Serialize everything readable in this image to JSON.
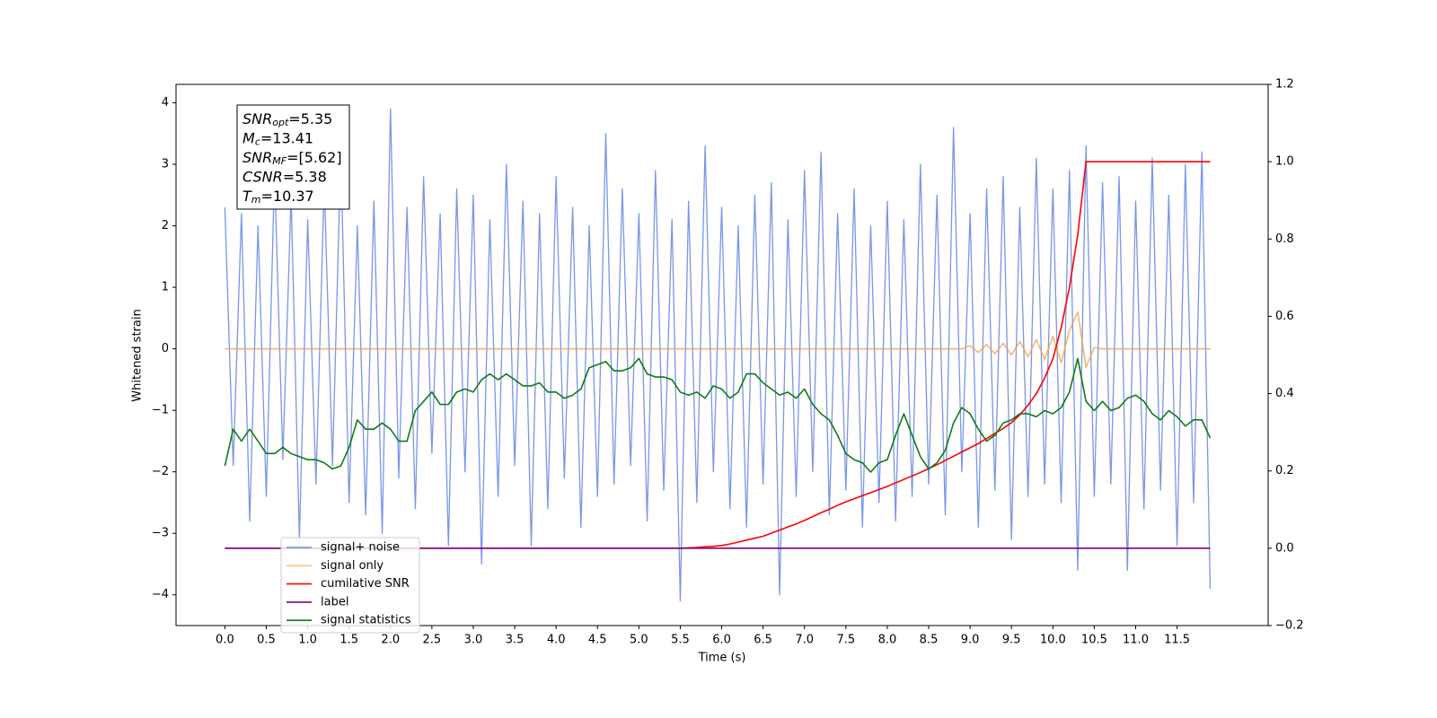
{
  "chart_data": {
    "type": "line",
    "xlabel": "Time (s)",
    "ylabel": "Whitened strain",
    "xlim": [
      -0.59,
      12.6
    ],
    "ylim": [
      -4.5,
      4.3
    ],
    "y2lim": [
      -0.2,
      1.2
    ],
    "xticks": [
      {
        "value": 0,
        "label": "0.0"
      },
      0.5,
      {
        "value": 1,
        "label": "1.0"
      },
      1.5,
      {
        "value": 2,
        "label": "2.0"
      },
      2.5,
      {
        "value": 3,
        "label": "3.0"
      },
      3.5,
      {
        "value": 4,
        "label": "4.0"
      },
      4.5,
      {
        "value": 5,
        "label": "5.0"
      },
      5.5,
      {
        "value": 6,
        "label": "6.0"
      },
      6.5,
      {
        "value": 7,
        "label": "7.0"
      },
      7.5,
      {
        "value": 8,
        "label": "8.0"
      },
      8.5,
      {
        "value": 9,
        "label": "9.0"
      },
      9.5,
      {
        "value": 10,
        "label": "10.0"
      },
      10.5,
      {
        "value": 11,
        "label": "11.0"
      },
      11.5
    ],
    "yticks": [
      {
        "value": -4,
        "label": "−4"
      },
      {
        "value": -3,
        "label": "−3"
      },
      {
        "value": -2,
        "label": "−2"
      },
      {
        "value": -1,
        "label": "−1"
      },
      0,
      1,
      2,
      3,
      4
    ],
    "y2ticks": [
      {
        "value": -0.2,
        "label": "−0.2"
      },
      {
        "value": 0,
        "label": "0.0"
      },
      0.2,
      0.4,
      0.6,
      0.8,
      {
        "value": 1,
        "label": "1.0"
      },
      1.2
    ],
    "annotations": [
      {
        "main": "SNR",
        "sub": "opt",
        "text": "=5.35"
      },
      {
        "main": "M",
        "sub": "c",
        "text": "=13.41"
      },
      {
        "main": "SNR",
        "sub": "MF",
        "text": "=[5.62]"
      },
      {
        "main": "CSNR",
        "sub": null,
        "text": "=5.38"
      },
      {
        "main": "T",
        "sub": "m",
        "text": "=10.37"
      }
    ],
    "x": [
      0,
      0.1,
      0.2,
      0.3,
      0.4,
      0.5,
      0.6,
      0.7,
      0.8,
      0.9,
      1,
      1.1,
      1.2,
      1.3,
      1.4,
      1.5,
      1.6,
      1.7,
      1.8,
      1.9,
      2,
      2.1,
      2.2,
      2.3,
      2.4,
      2.5,
      2.6,
      2.7,
      2.8,
      2.9,
      3,
      3.1,
      3.2,
      3.3,
      3.4,
      3.5,
      3.6,
      3.7,
      3.8,
      3.9,
      4,
      4.1,
      4.2,
      4.3,
      4.4,
      4.5,
      4.6,
      4.7,
      4.8,
      4.9,
      5,
      5.1,
      5.2,
      5.3,
      5.4,
      5.5,
      5.6,
      5.7,
      5.8,
      5.9,
      6,
      6.1,
      6.2,
      6.3,
      6.4,
      6.5,
      6.6,
      6.7,
      6.8,
      6.9,
      7,
      7.1,
      7.2,
      7.3,
      7.4,
      7.5,
      7.6,
      7.7,
      7.8,
      7.9,
      8,
      8.1,
      8.2,
      8.3,
      8.4,
      8.5,
      8.6,
      8.7,
      8.8,
      8.9,
      9,
      9.1,
      9.2,
      9.3,
      9.4,
      9.5,
      9.6,
      9.7,
      9.8,
      9.9,
      10,
      10.1,
      10.2,
      10.3,
      10.4,
      10.5,
      10.6,
      10.7,
      10.8,
      10.9,
      11,
      11.1,
      11.2,
      11.3,
      11.4,
      11.5,
      11.6,
      11.7,
      11.8,
      11.9
    ],
    "series": [
      {
        "name": "signal+ noise",
        "color": "#6a8be6",
        "axis": "y",
        "values": [
          2.3,
          -1.9,
          2.2,
          -2.8,
          2.0,
          -2.4,
          2.9,
          -1.8,
          2.5,
          -3.1,
          2.1,
          -2.2,
          2.7,
          -1.9,
          3.2,
          -2.5,
          2.0,
          -2.7,
          2.4,
          -3.0,
          3.9,
          -2.1,
          2.3,
          -2.6,
          2.8,
          -1.7,
          2.2,
          -3.2,
          2.6,
          -2.0,
          2.5,
          -3.5,
          2.1,
          -2.4,
          3.0,
          -1.9,
          2.4,
          -3.2,
          2.2,
          -2.6,
          2.8,
          -2.1,
          2.3,
          -2.9,
          2.0,
          -2.4,
          3.5,
          -2.2,
          2.6,
          -1.9,
          2.2,
          -2.8,
          2.9,
          -2.3,
          2.1,
          -4.1,
          2.4,
          -2.5,
          3.3,
          -2.0,
          2.3,
          -2.6,
          2.0,
          -2.9,
          2.5,
          -2.2,
          2.7,
          -4.0,
          2.1,
          -2.4,
          2.9,
          -2.0,
          3.2,
          -2.7,
          2.2,
          -2.3,
          2.6,
          -2.9,
          2.0,
          -2.5,
          2.4,
          -2.8,
          2.1,
          -2.4,
          3.0,
          -2.2,
          2.5,
          -2.7,
          3.6,
          -2.0,
          2.2,
          -2.9,
          2.6,
          -2.3,
          2.8,
          -3.1,
          2.3,
          -2.4,
          3.1,
          -2.2,
          2.6,
          -2.5,
          2.9,
          -3.6,
          3.3,
          -2.4,
          2.7,
          -2.2,
          2.8,
          -3.6,
          2.4,
          -2.6,
          3.1,
          -2.3,
          2.5,
          -3.2,
          3.0,
          -2.5,
          3.2,
          -3.9
        ]
      },
      {
        "name": "signal only",
        "color": "#f0a040",
        "axis": "y",
        "values": [
          0,
          0,
          0,
          0,
          0,
          0,
          0,
          0,
          0,
          0,
          0,
          0,
          0,
          0,
          0,
          0,
          0,
          0,
          0,
          0,
          0,
          0,
          0,
          0,
          0,
          0,
          0,
          0,
          0,
          0,
          0,
          0,
          0,
          0,
          0,
          0,
          0,
          0,
          0,
          0,
          0,
          0,
          0,
          0,
          0,
          0,
          0,
          0,
          0,
          0,
          0,
          0,
          0,
          0,
          0,
          0,
          0,
          0,
          0,
          0,
          0,
          0,
          0,
          0,
          0,
          0,
          0,
          0,
          0,
          0,
          0,
          0,
          0,
          0,
          0,
          0,
          0,
          0,
          0,
          0,
          0,
          0,
          0,
          0,
          0,
          0,
          0,
          0,
          0,
          0,
          0.05,
          -0.06,
          0.07,
          -0.08,
          0.09,
          -0.1,
          0.12,
          -0.13,
          0.15,
          -0.17,
          0.2,
          -0.23,
          0.3,
          0.6,
          -0.3,
          0.02,
          0,
          0,
          0,
          0,
          0,
          0,
          0,
          0,
          0,
          0,
          0,
          0,
          0,
          0
        ]
      },
      {
        "name": "cumilative SNR",
        "color": "#ff0000",
        "axis": "y2",
        "values": [
          0,
          0,
          0,
          0,
          0,
          0,
          0,
          0,
          0,
          0,
          0,
          0,
          0,
          0,
          0,
          0,
          0,
          0,
          0,
          0,
          0,
          0,
          0,
          0,
          0,
          0,
          0,
          0,
          0,
          0,
          0,
          0,
          0,
          0,
          0,
          0,
          0,
          0,
          0,
          0,
          0,
          0,
          0,
          0,
          0,
          0,
          0,
          0,
          0,
          0,
          0,
          0,
          0,
          0,
          0,
          0,
          0.001,
          0.002,
          0.004,
          0.005,
          0.007,
          0.011,
          0.016,
          0.021,
          0.026,
          0.031,
          0.039,
          0.047,
          0.055,
          0.063,
          0.072,
          0.082,
          0.092,
          0.101,
          0.111,
          0.12,
          0.128,
          0.136,
          0.144,
          0.152,
          0.16,
          0.169,
          0.178,
          0.187,
          0.196,
          0.206,
          0.216,
          0.227,
          0.238,
          0.249,
          0.26,
          0.271,
          0.284,
          0.297,
          0.31,
          0.325,
          0.345,
          0.37,
          0.4,
          0.44,
          0.49,
          0.57,
          0.675,
          0.81,
          1.0,
          1.0,
          1.0,
          1.0,
          1.0,
          1.0,
          1.0,
          1.0,
          1.0,
          1.0,
          1.0,
          1.0,
          1.0,
          1.0,
          1.0,
          1.0
        ]
      },
      {
        "name": "label",
        "color": "#800080",
        "axis": "y2",
        "values": [
          0,
          0,
          0,
          0,
          0,
          0,
          0,
          0,
          0,
          0,
          0,
          0,
          0,
          0,
          0,
          0,
          0,
          0,
          0,
          0,
          0,
          0,
          0,
          0,
          0,
          0,
          0,
          0,
          0,
          0,
          0,
          0,
          0,
          0,
          0,
          0,
          0,
          0,
          0,
          0,
          0,
          0,
          0,
          0,
          0,
          0,
          0,
          0,
          0,
          0,
          0,
          0,
          0,
          0,
          0,
          0,
          0,
          0,
          0,
          0,
          0,
          0,
          0,
          0,
          0,
          0,
          0,
          0,
          0,
          0,
          0,
          0,
          0,
          0,
          0,
          0,
          0,
          0,
          0,
          0,
          0,
          0,
          0,
          0,
          0,
          0,
          0,
          0,
          0,
          0,
          0,
          0,
          0,
          0,
          0,
          0,
          0,
          0,
          0,
          0,
          0,
          0,
          0,
          0,
          0,
          0,
          0,
          0,
          0,
          0,
          0,
          0,
          0,
          0,
          0,
          0,
          0,
          0,
          0,
          0
        ]
      },
      {
        "name": "signal statistics",
        "color": "#137a13",
        "axis": "y2",
        "values": [
          0.213,
          0.308,
          0.277,
          0.308,
          0.277,
          0.245,
          0.245,
          0.261,
          0.245,
          0.237,
          0.229,
          0.229,
          0.221,
          0.205,
          0.213,
          0.261,
          0.332,
          0.308,
          0.308,
          0.324,
          0.308,
          0.277,
          0.277,
          0.356,
          0.38,
          0.404,
          0.372,
          0.372,
          0.404,
          0.412,
          0.404,
          0.436,
          0.451,
          0.436,
          0.451,
          0.436,
          0.42,
          0.42,
          0.428,
          0.404,
          0.404,
          0.388,
          0.396,
          0.412,
          0.467,
          0.475,
          0.483,
          0.459,
          0.459,
          0.467,
          0.491,
          0.451,
          0.443,
          0.443,
          0.436,
          0.404,
          0.396,
          0.404,
          0.388,
          0.42,
          0.412,
          0.388,
          0.404,
          0.451,
          0.451,
          0.428,
          0.412,
          0.396,
          0.404,
          0.388,
          0.412,
          0.372,
          0.348,
          0.332,
          0.292,
          0.245,
          0.229,
          0.221,
          0.197,
          0.221,
          0.229,
          0.292,
          0.348,
          0.292,
          0.237,
          0.205,
          0.221,
          0.253,
          0.324,
          0.364,
          0.348,
          0.308,
          0.277,
          0.292,
          0.324,
          0.332,
          0.348,
          0.348,
          0.34,
          0.356,
          0.348,
          0.364,
          0.404,
          0.491,
          0.38,
          0.356,
          0.38,
          0.356,
          0.364,
          0.388,
          0.396,
          0.38,
          0.348,
          0.332,
          0.356,
          0.34,
          0.316,
          0.332,
          0.332,
          0.285
        ]
      }
    ]
  }
}
